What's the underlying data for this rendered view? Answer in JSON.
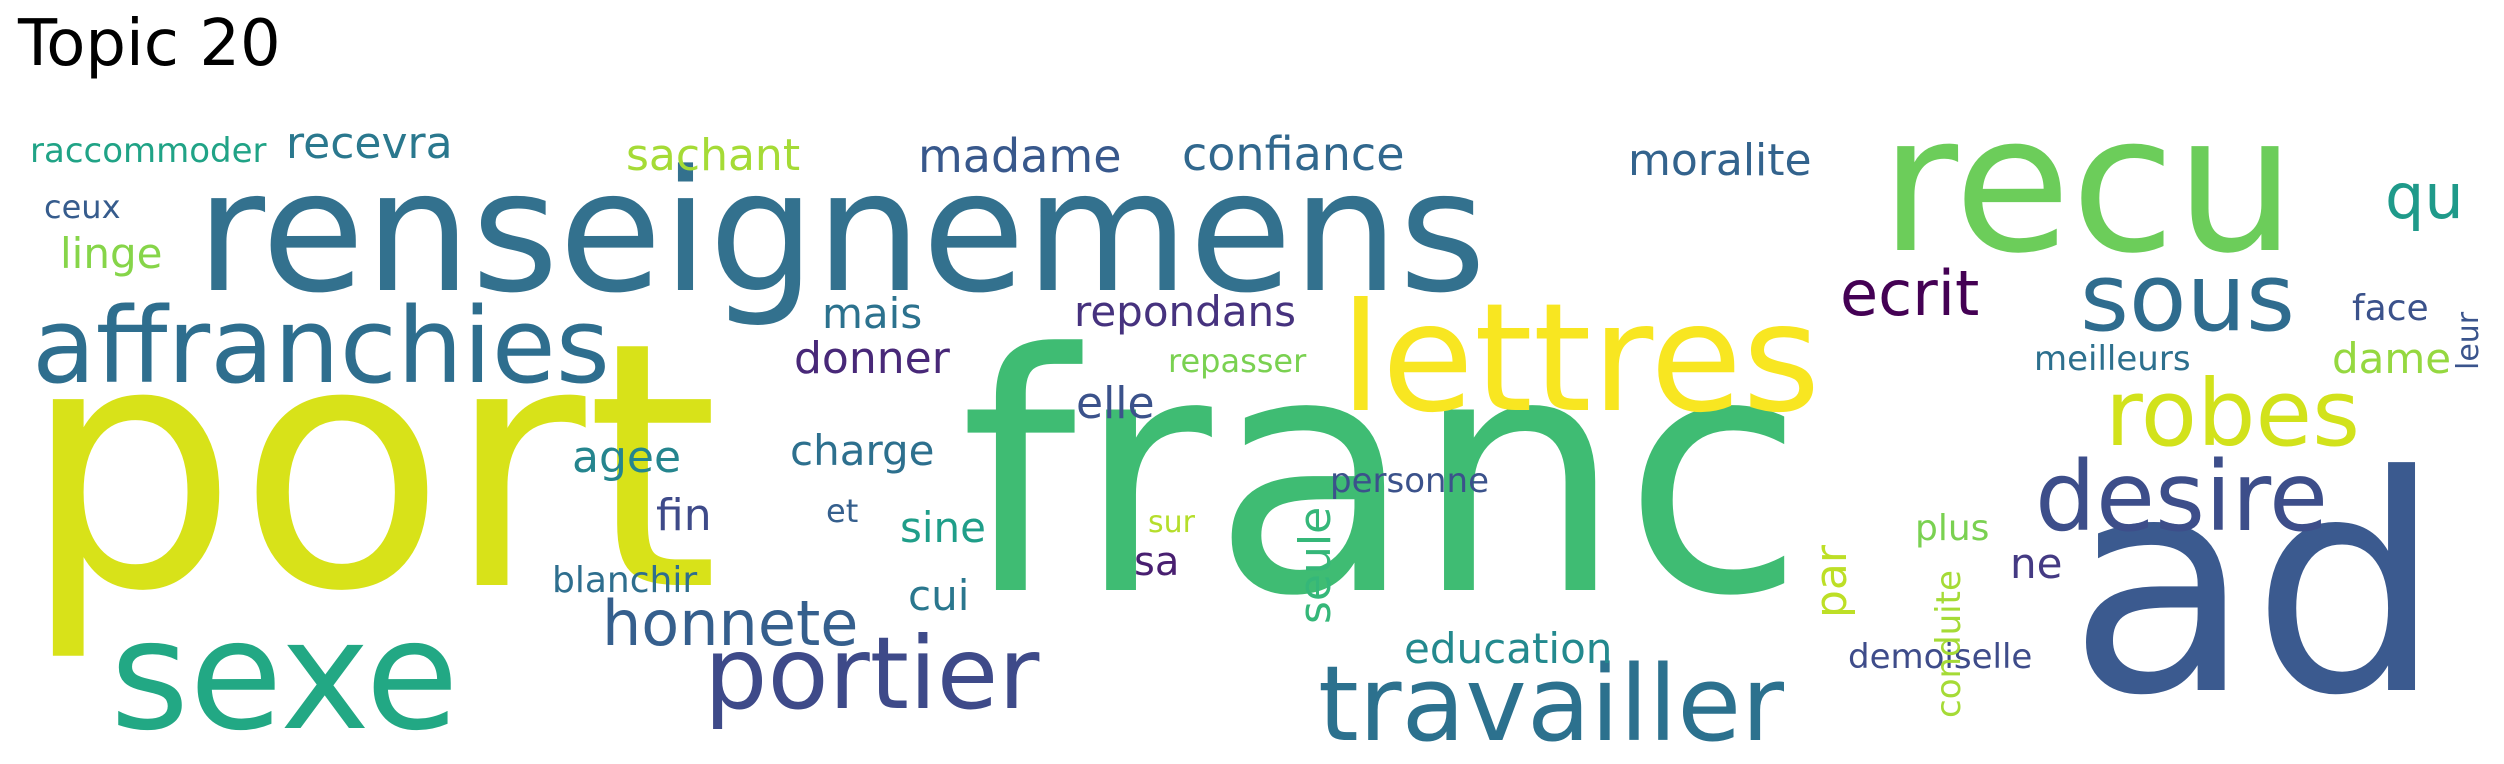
{
  "title": "Topic 20",
  "palette": "viridis",
  "words": [
    {
      "text": "port",
      "color": "#d8e219"
    },
    {
      "text": "franc",
      "color": "#3fbc73"
    },
    {
      "text": "ad",
      "color": "#3b5a8f"
    },
    {
      "text": "renseignemens",
      "color": "#33718e"
    },
    {
      "text": "recu",
      "color": "#6ccd5a"
    },
    {
      "text": "lettres",
      "color": "#f8e621"
    },
    {
      "text": "sexe",
      "color": "#22a884"
    },
    {
      "text": "affranchies",
      "color": "#2e6e8e"
    },
    {
      "text": "travailler",
      "color": "#2c718e"
    },
    {
      "text": "portier",
      "color": "#3e4a89"
    },
    {
      "text": "desire",
      "color": "#3d4e8a"
    },
    {
      "text": "robes",
      "color": "#d2e21b"
    },
    {
      "text": "sous",
      "color": "#2f6c8e"
    },
    {
      "text": "honnete",
      "color": "#355f8d"
    },
    {
      "text": "ecrit",
      "color": "#440154"
    },
    {
      "text": "qu",
      "color": "#1f9a8a"
    },
    {
      "text": "confiance",
      "color": "#31688e"
    },
    {
      "text": "madame",
      "color": "#38588c"
    },
    {
      "text": "moralite",
      "color": "#33638d"
    },
    {
      "text": "sachant",
      "color": "#a5db36"
    },
    {
      "text": "recevra",
      "color": "#2a788e"
    },
    {
      "text": "raccommoder",
      "color": "#20a386"
    },
    {
      "text": "ceux",
      "color": "#365c8d"
    },
    {
      "text": "linge",
      "color": "#86d549"
    },
    {
      "text": "repondans",
      "color": "#46327e"
    },
    {
      "text": "mais",
      "color": "#2c728e"
    },
    {
      "text": "donner",
      "color": "#482878"
    },
    {
      "text": "repasser",
      "color": "#7ad151"
    },
    {
      "text": "elle",
      "color": "#3b528b"
    },
    {
      "text": "charge",
      "color": "#2d708e"
    },
    {
      "text": "agee",
      "color": "#25858e"
    },
    {
      "text": "fin",
      "color": "#3e4a89"
    },
    {
      "text": "et",
      "color": "#355f8d"
    },
    {
      "text": "sine",
      "color": "#1f9e89"
    },
    {
      "text": "sa",
      "color": "#481f70"
    },
    {
      "text": "cui",
      "color": "#2a778e"
    },
    {
      "text": "blanchir",
      "color": "#2e6e8e"
    },
    {
      "text": "seule",
      "color": "#35b779"
    },
    {
      "text": "personne",
      "color": "#3b528b"
    },
    {
      "text": "sur",
      "color": "#b5de2b"
    },
    {
      "text": "par",
      "color": "#bddf26"
    },
    {
      "text": "plus",
      "color": "#7ad151"
    },
    {
      "text": "ne",
      "color": "#443a83"
    },
    {
      "text": "education",
      "color": "#23898e"
    },
    {
      "text": "demoiselle",
      "color": "#3e4c8a"
    },
    {
      "text": "conduite",
      "color": "#a5db36"
    },
    {
      "text": "meilleurs",
      "color": "#2d708e"
    },
    {
      "text": "dame",
      "color": "#95d840"
    },
    {
      "text": "face",
      "color": "#3b528b"
    },
    {
      "text": "leur",
      "color": "#3a548c"
    }
  ]
}
